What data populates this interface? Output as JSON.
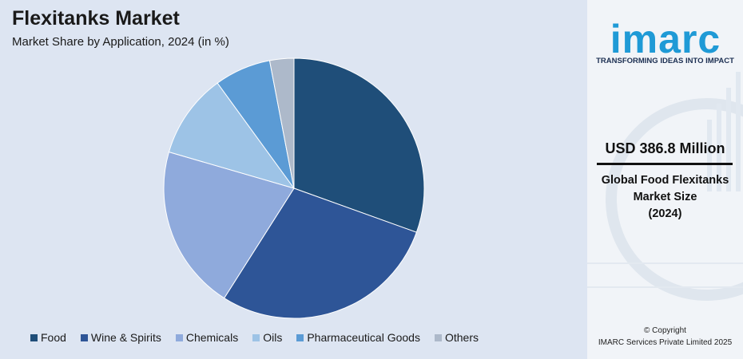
{
  "header": {
    "title": "Flexitanks Market",
    "subtitle": "Market Share by Application, 2024 (in %)"
  },
  "chart_data": {
    "type": "pie",
    "title": "Flexitanks Market",
    "subtitle": "Market Share by Application, 2024 (in %)",
    "categories": [
      "Food",
      "Wine & Spirits",
      "Chemicals",
      "Oils",
      "Pharmaceutical Goods",
      "Others"
    ],
    "values": [
      30.5,
      28.5,
      20.5,
      10.5,
      7.0,
      3.0
    ],
    "colors": [
      "#1f4e79",
      "#2e5597",
      "#8faadc",
      "#9dc3e6",
      "#5b9bd5",
      "#adb9ca"
    ],
    "legend_position": "bottom"
  },
  "sidebar": {
    "logo_text": "imarc",
    "tagline": "TRANSFORMING IDEAS INTO IMPACT",
    "value": "USD 386.8 Million",
    "desc_line1": "Global Food Flexitanks",
    "desc_line2": "Market Size",
    "desc_line3": "(2024)",
    "copyright_line1": "© Copyright",
    "copyright_line2": "IMARC Services Private Limited 2025",
    "accent_color": "#1f9ad6"
  }
}
